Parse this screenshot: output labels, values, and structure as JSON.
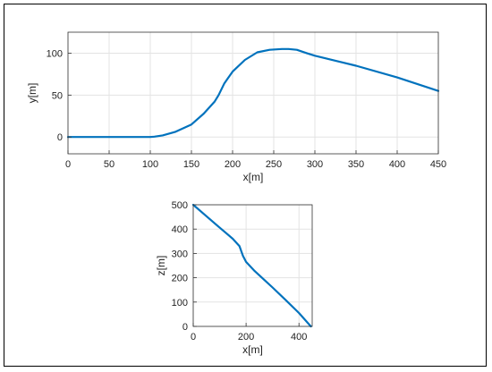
{
  "chart_data": [
    {
      "type": "line",
      "xlabel": "x[m]",
      "ylabel": "y[m]",
      "xlim": [
        0,
        450
      ],
      "ylim": [
        -20,
        125
      ],
      "xticks": [
        0,
        50,
        100,
        150,
        200,
        250,
        300,
        350,
        400,
        450
      ],
      "yticks": [
        0,
        50,
        100
      ],
      "grid": true,
      "color": "#0072BD",
      "series": [
        {
          "x": [
            0,
            50,
            100,
            105,
            115,
            130,
            150,
            165,
            178,
            183,
            190,
            200,
            215,
            230,
            245,
            260,
            268,
            278,
            290,
            300,
            350,
            400,
            450
          ],
          "y": [
            0,
            0,
            0,
            0.5,
            2,
            6,
            15,
            28,
            42,
            50,
            64,
            78,
            92,
            101,
            104,
            105,
            105,
            104,
            100,
            97,
            85,
            71,
            55
          ]
        }
      ]
    },
    {
      "type": "line",
      "xlabel": "x[m]",
      "ylabel": "z[m]",
      "xlim": [
        0,
        450
      ],
      "ylim": [
        0,
        500
      ],
      "xticks": [
        0,
        200,
        400
      ],
      "yticks": [
        0,
        100,
        200,
        300,
        400,
        500
      ],
      "grid": true,
      "color": "#0072BD",
      "series": [
        {
          "x": [
            0,
            50,
            100,
            150,
            175,
            188,
            200,
            230,
            270,
            300,
            350,
            400,
            445
          ],
          "y": [
            500,
            453,
            406,
            360,
            330,
            290,
            265,
            230,
            190,
            160,
            108,
            55,
            0
          ]
        }
      ]
    }
  ]
}
